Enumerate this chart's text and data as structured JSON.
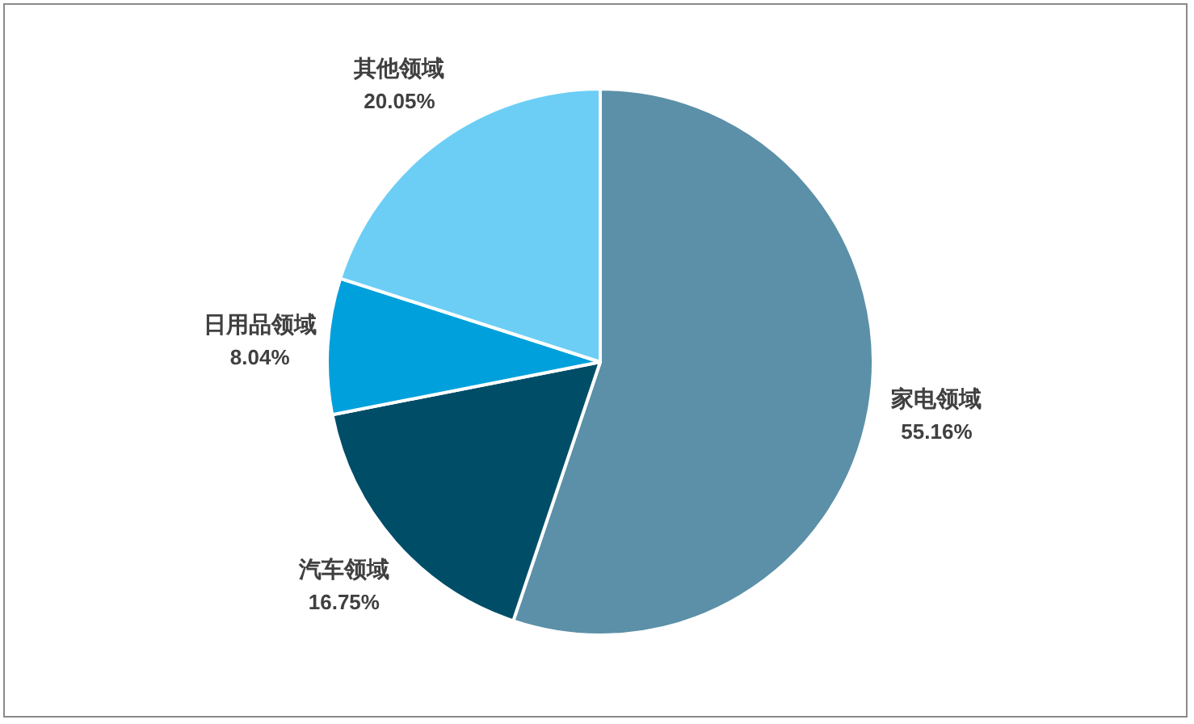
{
  "chart_data": {
    "type": "pie",
    "categories": [
      "家电领域",
      "汽车领域",
      "日用品领域",
      "其他领域"
    ],
    "values": [
      55.16,
      16.75,
      8.04,
      20.05
    ],
    "colors": [
      "#5b90a8",
      "#004d68",
      "#00a0dc",
      "#6ccef5"
    ],
    "value_labels": [
      "55.16%",
      "16.75%",
      "8.04%",
      "20.05%"
    ],
    "legend": false
  }
}
